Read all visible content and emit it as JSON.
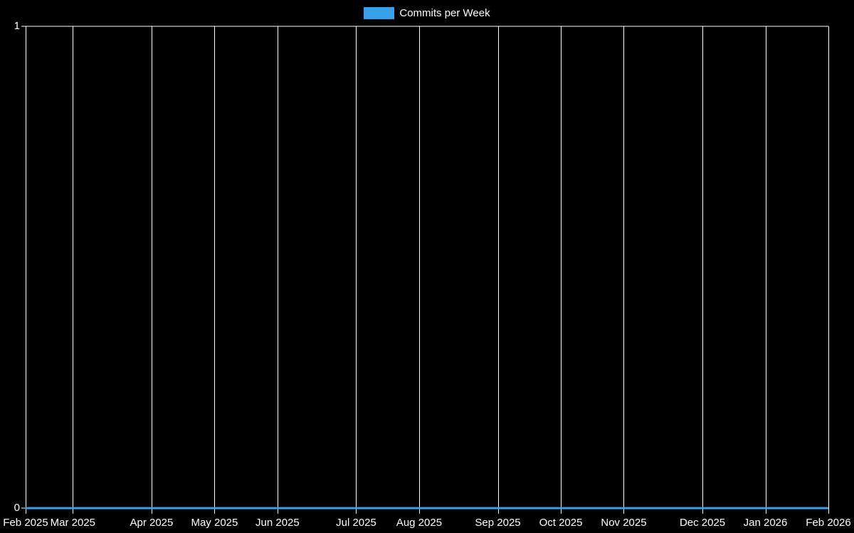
{
  "legend": {
    "items": [
      {
        "label": "Commits per Week",
        "color": "#36A2EB"
      }
    ]
  },
  "chart_data": {
    "type": "line",
    "title": "Commits per Week",
    "legend_position": "top-center",
    "background_color": "#000000",
    "grid_color": "#ffffff",
    "text_color": "#ffffff",
    "ylim": [
      0,
      1
    ],
    "y_ticks": [
      {
        "value": 0,
        "label": "0"
      },
      {
        "value": 1,
        "label": "1"
      }
    ],
    "x_unit": "week",
    "total_weeks": 51,
    "x_ticks": [
      {
        "label": "Feb 2025",
        "week": 0
      },
      {
        "label": "Mar 2025",
        "week": 3
      },
      {
        "label": "Apr 2025",
        "week": 8
      },
      {
        "label": "May 2025",
        "week": 12
      },
      {
        "label": "Jun 2025",
        "week": 16
      },
      {
        "label": "Jul 2025",
        "week": 21
      },
      {
        "label": "Aug 2025",
        "week": 25
      },
      {
        "label": "Sep 2025",
        "week": 30
      },
      {
        "label": "Oct 2025",
        "week": 34
      },
      {
        "label": "Nov 2025",
        "week": 38
      },
      {
        "label": "Dec 2025",
        "week": 43
      },
      {
        "label": "Jan 2026",
        "week": 47
      },
      {
        "label": "Feb 2026",
        "week": 51
      }
    ],
    "series": [
      {
        "name": "Commits per Week",
        "color": "#36A2EB",
        "line_width": 3,
        "values": [
          0,
          0,
          0,
          0,
          0,
          0,
          0,
          0,
          0,
          0,
          0,
          0,
          0,
          0,
          0,
          0,
          0,
          0,
          0,
          0,
          0,
          0,
          0,
          0,
          0,
          0,
          0,
          0,
          0,
          0,
          0,
          0,
          0,
          0,
          0,
          0,
          0,
          0,
          0,
          0,
          0,
          0,
          0,
          0,
          0,
          0,
          0,
          0,
          0,
          0,
          0,
          0
        ]
      }
    ]
  }
}
